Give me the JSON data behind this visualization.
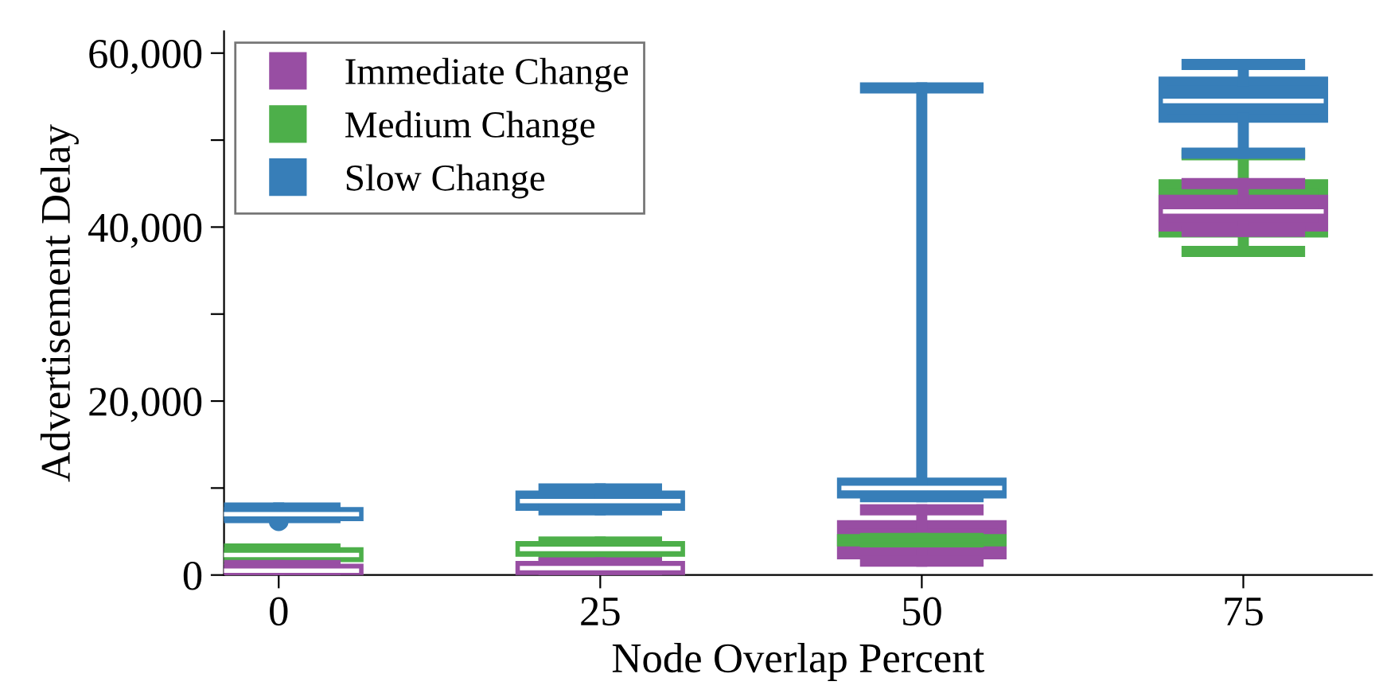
{
  "chart_data": {
    "type": "box",
    "xlabel": "Node Overlap Percent",
    "ylabel": "Advertisement Delay",
    "categories": [
      "0",
      "25",
      "50",
      "75"
    ],
    "ylim": [
      0,
      62500
    ],
    "yticks": [
      {
        "value": 0,
        "label": "0"
      },
      {
        "value": 10000,
        "label": null
      },
      {
        "value": 20000,
        "label": "20,000"
      },
      {
        "value": 30000,
        "label": null
      },
      {
        "value": 40000,
        "label": "40,000"
      },
      {
        "value": 50000,
        "label": null
      },
      {
        "value": 60000,
        "label": "60,000"
      }
    ],
    "legend": "top left",
    "grid": false,
    "series": [
      {
        "name": "Immediate Change",
        "color": "#984ea3",
        "boxes": [
          {
            "low": 0,
            "q1": 200,
            "median": 500,
            "q3": 800,
            "high": 1100
          },
          {
            "low": 400,
            "q1": 400,
            "median": 800,
            "q3": 1100,
            "high": 1400
          },
          {
            "low": 1600,
            "q1": 2300,
            "median": 4200,
            "q3": 5800,
            "high": 7500
          },
          {
            "low": 39500,
            "q1": 40000,
            "median": 41800,
            "q3": 43200,
            "high": 45000
          }
        ]
      },
      {
        "name": "Medium Change",
        "color": "#4daf4a",
        "boxes": [
          {
            "low": 1800,
            "q1": 2000,
            "median": 2300,
            "q3": 2700,
            "high": 3000
          },
          {
            "low": 2300,
            "q1": 2600,
            "median": 3000,
            "q3": 3400,
            "high": 3800
          },
          {
            "low": 3800,
            "q1": 3800,
            "median": 4000,
            "q3": 4200,
            "high": 4200
          },
          {
            "low": 37200,
            "q1": 39300,
            "median": 43000,
            "q3": 45000,
            "high": 48300
          }
        ]
      },
      {
        "name": "Slow Change",
        "color": "#377eb8",
        "boxes": [
          {
            "low": 6600,
            "q1": 6700,
            "median": 7000,
            "q3": 7300,
            "high": 7700,
            "outliers": [
              6200
            ]
          },
          {
            "low": 7500,
            "q1": 7900,
            "median": 8500,
            "q3": 9200,
            "high": 9900
          },
          {
            "low": 9000,
            "q1": 9300,
            "median": 10000,
            "q3": 10700,
            "high": 56000
          },
          {
            "low": 48500,
            "q1": 52500,
            "median": 54500,
            "q3": 56800,
            "high": 58700
          }
        ]
      }
    ]
  }
}
